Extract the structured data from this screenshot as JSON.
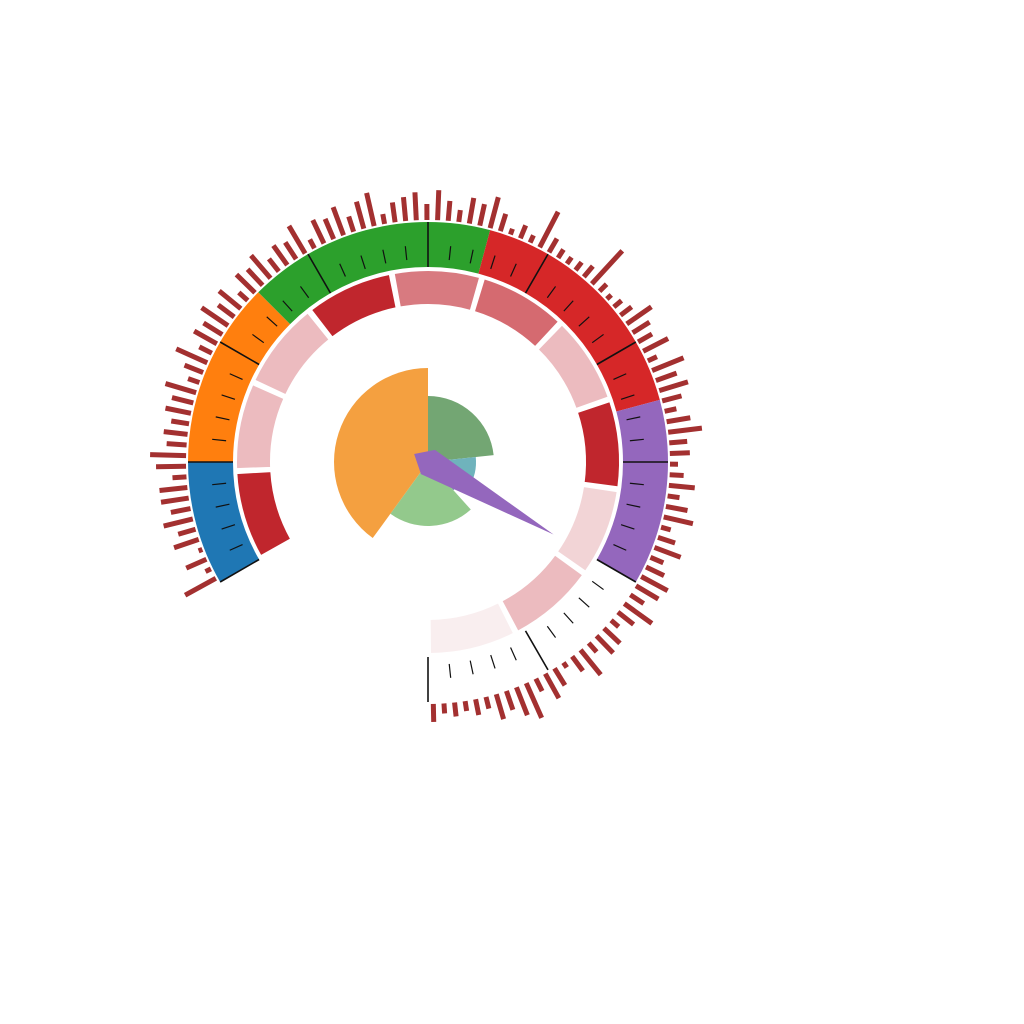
{
  "chart_data": {
    "type": "gauge",
    "title": "",
    "gauge": {
      "value_fraction": 0.8,
      "band_colors": [
        "#1f77b4",
        "#ff7f0e",
        "#2ca02c",
        "#d62728",
        "#9467bd",
        "#ffffff"
      ],
      "band_fractions": [
        0.1,
        0.15,
        0.2,
        0.2,
        0.15,
        0.2
      ],
      "needle_color": "#9467bd"
    },
    "ring_segments": [
      {
        "color": "#c0262d",
        "value": 0.2
      },
      {
        "color": "#ecbbbf",
        "value": 0.2
      },
      {
        "color": "#ecbbbf",
        "value": 0.2
      },
      {
        "color": "#c0262d",
        "value": 0.2
      },
      {
        "color": "#d87a80",
        "value": 0.2
      },
      {
        "color": "#d56a70",
        "value": 0.2
      },
      {
        "color": "#ecbbbf",
        "value": 0.2
      },
      {
        "color": "#c0262d",
        "value": 0.2
      },
      {
        "color": "#f2d4d6",
        "value": 0.2
      },
      {
        "color": "#ecbbbf",
        "value": 0.2
      },
      {
        "color": "#f9eeef",
        "value": 0.2
      }
    ],
    "spike_color": "#a33030",
    "spikes": [
      0.35,
      0.06,
      0.22,
      0.04,
      0.26,
      0.18,
      0.3,
      0.2,
      0.28,
      0.28,
      0.14,
      0.3,
      0.36,
      0.2,
      0.24,
      0.18,
      0.26,
      0.22,
      0.32,
      0.12,
      0.2,
      0.34,
      0.14,
      0.26,
      0.22,
      0.32,
      0.2,
      0.28,
      0.12,
      0.26,
      0.22,
      0.3,
      0.16,
      0.24,
      0.2,
      0.32,
      0.1,
      0.26,
      0.22,
      0.3,
      0.16,
      0.28,
      0.34,
      0.1,
      0.2,
      0.24,
      0.28,
      0.16,
      0.3,
      0.2,
      0.12,
      0.26,
      0.22,
      0.32,
      0.18,
      0.06,
      0.14,
      0.08,
      0.4,
      0.16,
      0.1,
      0.08,
      0.1,
      0.14,
      0.45,
      0.1,
      0.06,
      0.1,
      0.14,
      0.3,
      0.2,
      0.16,
      0.28,
      0.1,
      0.34,
      0.22,
      0.3,
      0.2,
      0.12,
      0.24,
      0.34,
      0.18,
      0.2,
      0.08,
      0.14,
      0.26,
      0.12,
      0.22,
      0.3,
      0.1,
      0.18,
      0.28,
      0.14,
      0.2,
      0.3,
      0.26,
      0.16,
      0.34,
      0.2,
      0.1,
      0.22,
      0.24,
      0.12,
      0.32,
      0.18,
      0.06,
      0.2,
      0.28,
      0.14,
      0.38,
      0.3,
      0.2,
      0.26,
      0.12,
      0.16,
      0.1,
      0.14,
      0.1,
      0.18
    ],
    "polar_wedges": [
      {
        "color": "#73a673",
        "start_deg": 0,
        "end_deg": 84,
        "value": 0.66
      },
      {
        "color": "#6fb3bc",
        "start_deg": 84,
        "end_deg": 122,
        "value": 0.48
      },
      {
        "color": "#7a8fb8",
        "start_deg": 122,
        "end_deg": 138,
        "value": 0.38
      },
      {
        "color": "#93c98c",
        "start_deg": 138,
        "end_deg": 216,
        "value": 0.64
      },
      {
        "color": "#f4a040",
        "start_deg": 216,
        "end_deg": 360,
        "value": 0.94
      }
    ]
  }
}
